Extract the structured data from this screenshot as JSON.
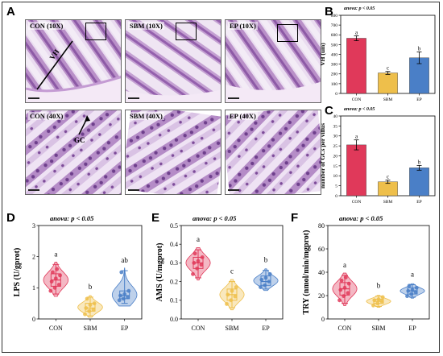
{
  "panels": {
    "A": "A",
    "B": "B",
    "C": "C",
    "D": "D",
    "E": "E",
    "F": "F"
  },
  "micrographs": [
    {
      "label": "CON (10X)"
    },
    {
      "label": "SBM (10X)"
    },
    {
      "label": "EP (10X)"
    },
    {
      "label": "CON (40X)"
    },
    {
      "label": "SBM (40X)"
    },
    {
      "label": "EP (40X)"
    }
  ],
  "annotations": {
    "vh": "VH",
    "gc": "GC"
  },
  "chart_data": [
    {
      "panel": "B",
      "type": "bar",
      "title": "anova: p < 0.05",
      "ylabel": "VH (um)",
      "ylim": [
        0,
        800
      ],
      "yticks": [
        "0",
        "100",
        "200",
        "300",
        "400",
        "500",
        "600",
        "700",
        "800"
      ],
      "categories": [
        "CON",
        "SBM",
        "EP"
      ],
      "values": [
        565,
        210,
        365
      ],
      "errors": [
        25,
        15,
        60
      ],
      "letters": [
        "a",
        "c",
        "b"
      ],
      "colors": [
        "#e0395a",
        "#eebf4b",
        "#4a7fc7"
      ]
    },
    {
      "panel": "C",
      "type": "bar",
      "title": "anova: p < 0.05",
      "ylabel": "number of GCs per villus",
      "ylim": [
        0,
        40
      ],
      "yticks": [
        "0",
        "5",
        "10",
        "15",
        "20",
        "25",
        "30",
        "35",
        "40"
      ],
      "categories": [
        "CON",
        "SBM",
        "EP"
      ],
      "values": [
        25.5,
        7,
        14
      ],
      "errors": [
        2.5,
        0.8,
        1.2
      ],
      "letters": [
        "a",
        "c",
        "b"
      ],
      "colors": [
        "#e0395a",
        "#eebf4b",
        "#4a7fc7"
      ]
    },
    {
      "panel": "D",
      "type": "violin",
      "title": "anova: p < 0.05",
      "ylabel": "LPS (U/gprot)",
      "ylim": [
        0,
        3
      ],
      "yticks": [
        "0",
        "1",
        "2",
        "3"
      ],
      "categories": [
        "CON",
        "SBM",
        "EP"
      ],
      "letters": [
        "a",
        "b",
        "ab"
      ],
      "colors": [
        "#e0395a",
        "#eebf4b",
        "#4a7fc7"
      ],
      "series": [
        {
          "category": "CON",
          "points": [
            0.9,
            1.0,
            1.1,
            1.2,
            1.3,
            1.4,
            1.5,
            1.6
          ],
          "median": 1.25,
          "q1": 1.05,
          "q3": 1.45,
          "min": 0.8,
          "max": 1.75
        },
        {
          "category": "SBM",
          "points": [
            0.15,
            0.25,
            0.3,
            0.35,
            0.45,
            0.5,
            0.65
          ],
          "median": 0.35,
          "q1": 0.25,
          "q3": 0.5,
          "min": 0.1,
          "max": 0.7
        },
        {
          "category": "EP",
          "points": [
            0.6,
            0.65,
            0.7,
            0.75,
            0.8,
            0.9,
            1.5
          ],
          "median": 0.75,
          "q1": 0.65,
          "q3": 0.9,
          "min": 0.5,
          "max": 1.55
        }
      ]
    },
    {
      "panel": "E",
      "type": "violin",
      "title": "anova: p < 0.05",
      "ylabel": "AMS (U/mgprot)",
      "ylim": [
        0,
        0.5
      ],
      "yticks": [
        "0.0",
        "0.1",
        "0.2",
        "0.3",
        "0.4",
        "0.5"
      ],
      "categories": [
        "CON",
        "SBM",
        "EP"
      ],
      "letters": [
        "a",
        "c",
        "b"
      ],
      "colors": [
        "#e0395a",
        "#eebf4b",
        "#4a7fc7"
      ],
      "series": [
        {
          "category": "CON",
          "points": [
            0.24,
            0.27,
            0.29,
            0.3,
            0.31,
            0.33,
            0.35
          ],
          "median": 0.3,
          "q1": 0.27,
          "q3": 0.33,
          "min": 0.22,
          "max": 0.37
        },
        {
          "category": "SBM",
          "points": [
            0.08,
            0.1,
            0.12,
            0.13,
            0.15,
            0.17
          ],
          "median": 0.13,
          "q1": 0.1,
          "q3": 0.16,
          "min": 0.06,
          "max": 0.2
        },
        {
          "category": "EP",
          "points": [
            0.17,
            0.18,
            0.2,
            0.21,
            0.22,
            0.24
          ],
          "median": 0.2,
          "q1": 0.18,
          "q3": 0.23,
          "min": 0.16,
          "max": 0.26
        }
      ]
    },
    {
      "panel": "F",
      "type": "violin",
      "title": "anova: p < 0.05",
      "ylabel": "TRY (nmol/min/mgprot)",
      "ylim": [
        0,
        90
      ],
      "yticks": [
        "0",
        "20",
        "40",
        "60",
        "80"
      ],
      "categories": [
        "CON",
        "SBM",
        "EP"
      ],
      "letters": [
        "a",
        "b",
        "a"
      ],
      "colors": [
        "#e0395a",
        "#eebf4b",
        "#4a7fc7"
      ],
      "series": [
        {
          "category": "CON",
          "points": [
            18,
            22,
            25,
            28,
            30,
            34,
            37,
            40
          ],
          "median": 29,
          "q1": 23,
          "q3": 35,
          "min": 15,
          "max": 42
        },
        {
          "category": "SBM",
          "points": [
            13,
            15,
            17,
            18,
            19,
            21
          ],
          "median": 17,
          "q1": 15,
          "q3": 19,
          "min": 12,
          "max": 22
        },
        {
          "category": "EP",
          "points": [
            22,
            24,
            26,
            27,
            28,
            30,
            32
          ],
          "median": 27,
          "q1": 24,
          "q3": 30,
          "min": 21,
          "max": 33
        }
      ]
    }
  ]
}
